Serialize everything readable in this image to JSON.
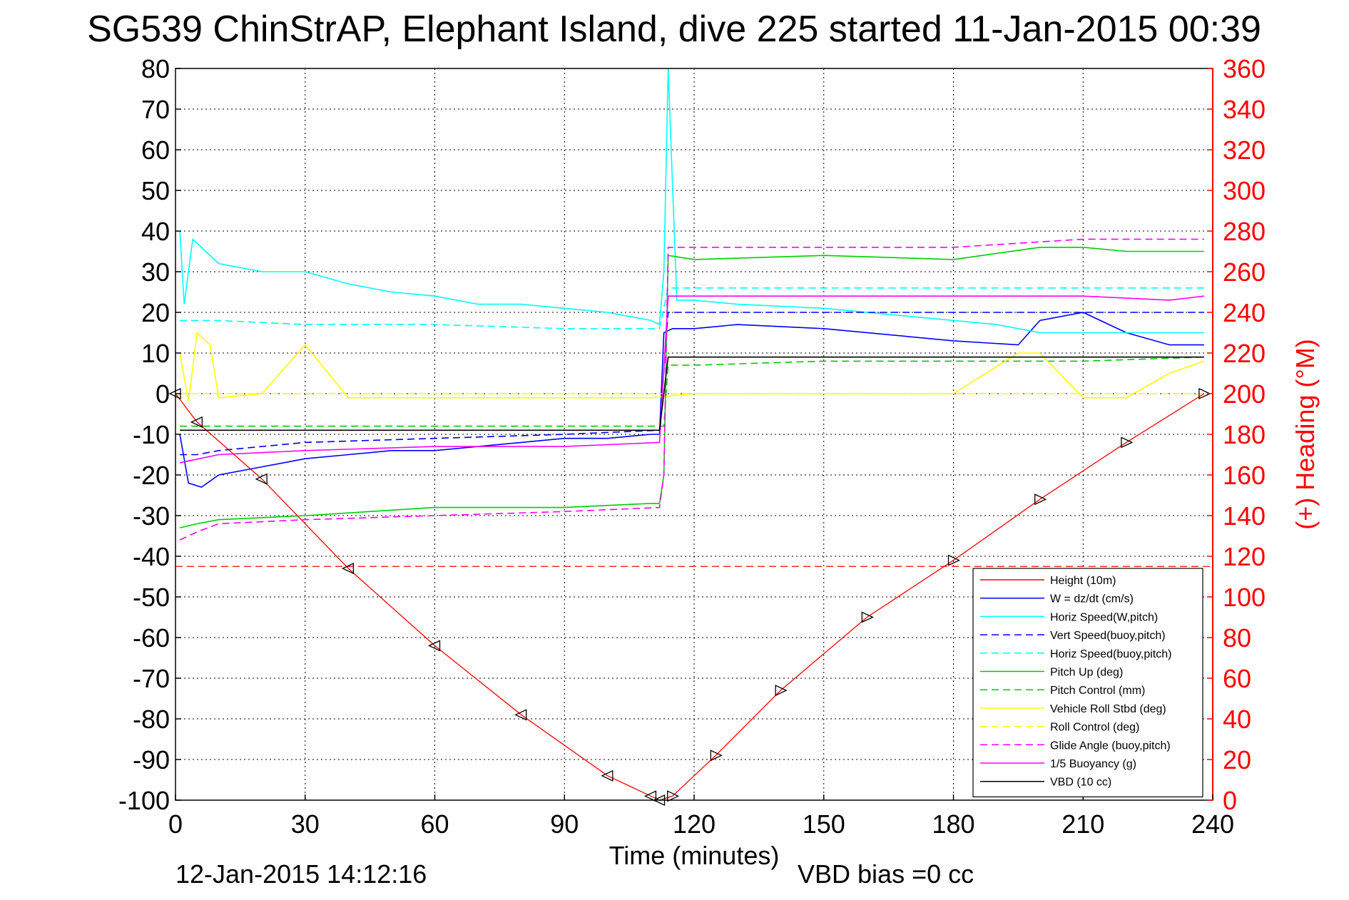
{
  "chart_data": {
    "type": "line",
    "title": "SG539 ChinStrAP, Elephant Island, dive 225 started 11-Jan-2015 00:39",
    "xlabel": "Time (minutes)",
    "ylabel": "",
    "y2label": "(+) Heading (°M)",
    "xlim": [
      0,
      240
    ],
    "ylim": [
      -100,
      80
    ],
    "y2lim": [
      0,
      360
    ],
    "x_ticks": [
      "0",
      "30",
      "60",
      "90",
      "120",
      "150",
      "180",
      "210",
      "240"
    ],
    "y_ticks": [
      "80",
      "70",
      "60",
      "50",
      "40",
      "30",
      "20",
      "10",
      "0",
      "-10",
      "-20",
      "-30",
      "-40",
      "-50",
      "-60",
      "-70",
      "-80",
      "-90",
      "-100"
    ],
    "y2_ticks": [
      "360",
      "340",
      "320",
      "300",
      "280",
      "260",
      "240",
      "220",
      "200",
      "180",
      "160",
      "140",
      "120",
      "100",
      "80",
      "60",
      "40",
      "20",
      "0"
    ],
    "grid": true,
    "legend_position": "lower-right",
    "footer_left": "12-Jan-2015 14:12:16",
    "footer_right": "VBD bias =0 cc",
    "mean_heading_line": 115,
    "series": [
      {
        "name": "Height (10m)",
        "color": "#ff0000",
        "dash": "solid",
        "x": [
          0,
          5,
          20,
          40,
          60,
          80,
          100,
          110,
          112,
          115,
          125,
          140,
          160,
          180,
          200,
          220,
          238
        ],
        "values": [
          0,
          -7,
          -21,
          -43,
          -62,
          -79,
          -94,
          -99,
          -100,
          -99,
          -89,
          -73,
          -55,
          -41,
          -26,
          -12,
          0
        ]
      },
      {
        "name": "W = dz/dt (cm/s)",
        "color": "#0000ff",
        "dash": "solid",
        "x": [
          1,
          3,
          6,
          10,
          20,
          30,
          40,
          50,
          60,
          70,
          80,
          90,
          100,
          110,
          112,
          113,
          115,
          120,
          130,
          150,
          180,
          195,
          200,
          210,
          220,
          230,
          238
        ],
        "values": [
          -10,
          -22,
          -23,
          -20,
          -18,
          -16,
          -15,
          -14,
          -14,
          -13,
          -12,
          -11,
          -11,
          -10,
          -10,
          15,
          16,
          16,
          17,
          16,
          13,
          12,
          18,
          20,
          15,
          12,
          12
        ]
      },
      {
        "name": "Horiz Speed(W,pitch)",
        "color": "#00ffff",
        "dash": "solid",
        "x": [
          1,
          2,
          4,
          10,
          20,
          30,
          40,
          50,
          60,
          70,
          80,
          90,
          100,
          110,
          112,
          113,
          114,
          116,
          120,
          130,
          150,
          170,
          190,
          200,
          210,
          220,
          230,
          238
        ],
        "values": [
          40,
          22,
          38,
          32,
          30,
          30,
          27,
          25,
          24,
          22,
          22,
          21,
          20,
          18,
          17,
          30,
          80,
          23,
          23,
          22,
          21,
          19,
          17,
          15,
          15,
          15,
          15,
          15
        ]
      },
      {
        "name": "Vert Speed(buoy,pitch)",
        "color": "#0000ff",
        "dash": "dashed",
        "x": [
          1,
          5,
          10,
          30,
          60,
          90,
          112,
          114,
          120,
          150,
          180,
          210,
          238
        ],
        "values": [
          -15,
          -15,
          -14,
          -12,
          -11,
          -10,
          -9,
          20,
          20,
          20,
          20,
          20,
          20
        ]
      },
      {
        "name": "Horiz Speed(buoy,pitch)",
        "color": "#00ffff",
        "dash": "dashed",
        "x": [
          1,
          5,
          10,
          30,
          60,
          90,
          112,
          114,
          120,
          150,
          180,
          210,
          238
        ],
        "values": [
          18,
          18,
          18,
          17,
          17,
          16,
          16,
          26,
          26,
          26,
          26,
          26,
          26
        ]
      },
      {
        "name": "Pitch Up (deg)",
        "color": "#00cc00",
        "dash": "solid",
        "x": [
          1,
          5,
          10,
          30,
          60,
          90,
          110,
          112,
          113,
          114,
          120,
          150,
          180,
          200,
          210,
          220,
          230,
          238
        ],
        "values": [
          -33,
          -32,
          -31,
          -30,
          -28,
          -28,
          -27,
          -27,
          -20,
          34,
          33,
          34,
          33,
          36,
          36,
          35,
          35,
          35
        ]
      },
      {
        "name": "Pitch Control (mm)",
        "color": "#00cc00",
        "dash": "dashed",
        "x": [
          1,
          112,
          113,
          114,
          120,
          150,
          180,
          210,
          238
        ],
        "values": [
          -8,
          -8,
          -8,
          7,
          7,
          8,
          8,
          8,
          9
        ]
      },
      {
        "name": "Vehicle Roll Stbd (deg)",
        "color": "#ffff00",
        "dash": "solid",
        "x": [
          1,
          3,
          5,
          8,
          10,
          20,
          30,
          40,
          50,
          60,
          70,
          80,
          90,
          100,
          110,
          120,
          150,
          180,
          195,
          200,
          210,
          220,
          230,
          238
        ],
        "values": [
          10,
          -2,
          15,
          12,
          -1,
          0,
          12,
          -1,
          -1,
          -1,
          -1,
          -1,
          -1,
          -1,
          -1,
          0,
          0,
          0,
          10,
          10,
          -1,
          -1,
          5,
          8
        ]
      },
      {
        "name": "Roll Control (deg)",
        "color": "#ffff00",
        "dash": "dashed",
        "x": [
          1,
          112,
          114,
          238
        ],
        "values": [
          0,
          0,
          0,
          0
        ]
      },
      {
        "name": "Glide Angle (buoy,pitch)",
        "color": "#ff00ff",
        "dash": "dashed",
        "x": [
          1,
          5,
          10,
          30,
          60,
          90,
          112,
          113,
          114,
          120,
          150,
          180,
          210,
          238
        ],
        "values": [
          -36,
          -34,
          -32,
          -31,
          -30,
          -29,
          -28,
          -20,
          36,
          36,
          36,
          36,
          38,
          38
        ]
      },
      {
        "name": "1/5 Buoyancy (g)",
        "color": "#ff00ff",
        "dash": "solid",
        "x": [
          1,
          10,
          30,
          60,
          90,
          112,
          114,
          120,
          150,
          180,
          210,
          230,
          238
        ],
        "values": [
          -17,
          -15,
          -14,
          -13,
          -13,
          -12,
          24,
          24,
          24,
          24,
          24,
          23,
          24
        ]
      },
      {
        "name": "VBD (10 cc)",
        "color": "#000000",
        "dash": "solid",
        "x": [
          1,
          112,
          114,
          120,
          150,
          180,
          210,
          238
        ],
        "values": [
          -9,
          -9,
          9,
          9,
          9,
          9,
          9,
          9
        ]
      }
    ]
  }
}
